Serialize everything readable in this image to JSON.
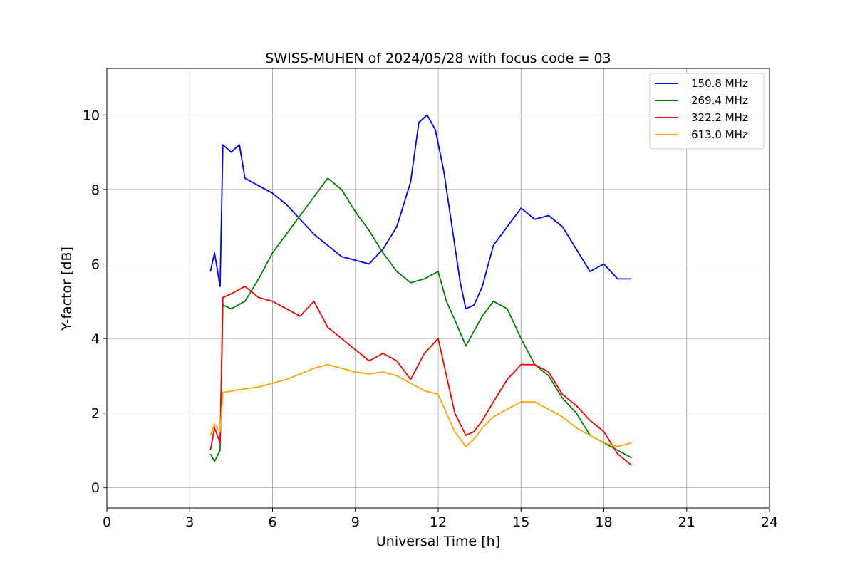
{
  "chart_data": {
    "type": "line",
    "title": "SWISS-MUHEN of 2024/05/28 with focus code = 03",
    "xlabel": "Universal Time [h]",
    "ylabel": "Y-factor [dB]",
    "xlim": [
      0,
      24
    ],
    "ylim": [
      -0.55,
      11.25
    ],
    "xticks": [
      0,
      3,
      6,
      9,
      12,
      15,
      18,
      21,
      24
    ],
    "yticks": [
      0,
      2,
      4,
      6,
      8,
      10
    ],
    "grid": true,
    "legend_position": "top-right",
    "series": [
      {
        "name": "150.8 MHz",
        "color": "#0000ff",
        "points": [
          [
            3.75,
            5.8
          ],
          [
            3.9,
            6.3
          ],
          [
            4.1,
            5.4
          ],
          [
            4.2,
            9.2
          ],
          [
            4.5,
            9.0
          ],
          [
            4.8,
            9.2
          ],
          [
            5.0,
            8.3
          ],
          [
            5.5,
            8.1
          ],
          [
            6.0,
            7.9
          ],
          [
            6.5,
            7.6
          ],
          [
            7.0,
            7.2
          ],
          [
            7.5,
            6.8
          ],
          [
            8.0,
            6.5
          ],
          [
            8.5,
            6.2
          ],
          [
            9.0,
            6.1
          ],
          [
            9.5,
            6.0
          ],
          [
            10.0,
            6.4
          ],
          [
            10.5,
            7.0
          ],
          [
            11.0,
            8.2
          ],
          [
            11.3,
            9.8
          ],
          [
            11.6,
            10.0
          ],
          [
            11.9,
            9.6
          ],
          [
            12.2,
            8.5
          ],
          [
            12.5,
            7.0
          ],
          [
            12.8,
            5.5
          ],
          [
            13.0,
            4.8
          ],
          [
            13.3,
            4.9
          ],
          [
            13.6,
            5.4
          ],
          [
            14.0,
            6.5
          ],
          [
            14.5,
            7.0
          ],
          [
            15.0,
            7.5
          ],
          [
            15.5,
            7.2
          ],
          [
            16.0,
            7.3
          ],
          [
            16.5,
            7.0
          ],
          [
            17.0,
            6.4
          ],
          [
            17.5,
            5.8
          ],
          [
            18.0,
            6.0
          ],
          [
            18.5,
            5.6
          ],
          [
            19.0,
            5.6
          ]
        ]
      },
      {
        "name": "269.4 MHz",
        "color": "#008000",
        "points": [
          [
            3.75,
            0.9
          ],
          [
            3.9,
            0.7
          ],
          [
            4.1,
            1.0
          ],
          [
            4.2,
            4.9
          ],
          [
            4.5,
            4.8
          ],
          [
            5.0,
            5.0
          ],
          [
            5.5,
            5.6
          ],
          [
            6.0,
            6.3
          ],
          [
            6.5,
            6.8
          ],
          [
            7.0,
            7.3
          ],
          [
            7.5,
            7.8
          ],
          [
            8.0,
            8.3
          ],
          [
            8.5,
            8.0
          ],
          [
            9.0,
            7.4
          ],
          [
            9.5,
            6.9
          ],
          [
            10.0,
            6.3
          ],
          [
            10.5,
            5.8
          ],
          [
            11.0,
            5.5
          ],
          [
            11.5,
            5.6
          ],
          [
            12.0,
            5.8
          ],
          [
            12.3,
            5.0
          ],
          [
            12.6,
            4.5
          ],
          [
            13.0,
            3.8
          ],
          [
            13.3,
            4.2
          ],
          [
            13.6,
            4.6
          ],
          [
            14.0,
            5.0
          ],
          [
            14.5,
            4.8
          ],
          [
            15.0,
            4.0
          ],
          [
            15.5,
            3.3
          ],
          [
            16.0,
            3.0
          ],
          [
            16.5,
            2.4
          ],
          [
            17.0,
            2.0
          ],
          [
            17.5,
            1.4
          ],
          [
            18.0,
            1.2
          ],
          [
            18.5,
            1.0
          ],
          [
            19.0,
            0.8
          ]
        ]
      },
      {
        "name": "322.2 MHz",
        "color": "#ff0000",
        "points": [
          [
            3.75,
            1.0
          ],
          [
            3.9,
            1.6
          ],
          [
            4.1,
            1.2
          ],
          [
            4.2,
            5.1
          ],
          [
            4.5,
            5.2
          ],
          [
            5.0,
            5.4
          ],
          [
            5.5,
            5.1
          ],
          [
            6.0,
            5.0
          ],
          [
            6.5,
            4.8
          ],
          [
            7.0,
            4.6
          ],
          [
            7.5,
            5.0
          ],
          [
            8.0,
            4.3
          ],
          [
            8.5,
            4.0
          ],
          [
            9.0,
            3.7
          ],
          [
            9.5,
            3.4
          ],
          [
            10.0,
            3.6
          ],
          [
            10.5,
            3.4
          ],
          [
            11.0,
            2.9
          ],
          [
            11.5,
            3.6
          ],
          [
            12.0,
            4.0
          ],
          [
            12.3,
            3.0
          ],
          [
            12.6,
            2.0
          ],
          [
            13.0,
            1.4
          ],
          [
            13.3,
            1.5
          ],
          [
            13.6,
            1.8
          ],
          [
            14.0,
            2.3
          ],
          [
            14.5,
            2.9
          ],
          [
            15.0,
            3.3
          ],
          [
            15.5,
            3.3
          ],
          [
            16.0,
            3.1
          ],
          [
            16.5,
            2.5
          ],
          [
            17.0,
            2.2
          ],
          [
            17.5,
            1.8
          ],
          [
            18.0,
            1.5
          ],
          [
            18.5,
            0.9
          ],
          [
            19.0,
            0.6
          ]
        ]
      },
      {
        "name": "613.0 MHz",
        "color": "#ffa500",
        "points": [
          [
            3.75,
            1.4
          ],
          [
            3.9,
            1.7
          ],
          [
            4.1,
            1.5
          ],
          [
            4.2,
            2.55
          ],
          [
            5.0,
            2.65
          ],
          [
            5.5,
            2.7
          ],
          [
            6.0,
            2.8
          ],
          [
            6.5,
            2.9
          ],
          [
            7.0,
            3.05
          ],
          [
            7.5,
            3.2
          ],
          [
            8.0,
            3.3
          ],
          [
            8.5,
            3.2
          ],
          [
            9.0,
            3.1
          ],
          [
            9.5,
            3.05
          ],
          [
            10.0,
            3.1
          ],
          [
            10.5,
            3.0
          ],
          [
            11.0,
            2.8
          ],
          [
            11.5,
            2.6
          ],
          [
            12.0,
            2.5
          ],
          [
            12.3,
            2.0
          ],
          [
            12.6,
            1.5
          ],
          [
            13.0,
            1.1
          ],
          [
            13.3,
            1.3
          ],
          [
            13.6,
            1.6
          ],
          [
            14.0,
            1.9
          ],
          [
            14.5,
            2.1
          ],
          [
            15.0,
            2.3
          ],
          [
            15.5,
            2.3
          ],
          [
            16.0,
            2.1
          ],
          [
            16.5,
            1.9
          ],
          [
            17.0,
            1.6
          ],
          [
            17.5,
            1.4
          ],
          [
            18.0,
            1.2
          ],
          [
            18.5,
            1.1
          ],
          [
            19.0,
            1.2
          ]
        ]
      }
    ]
  }
}
